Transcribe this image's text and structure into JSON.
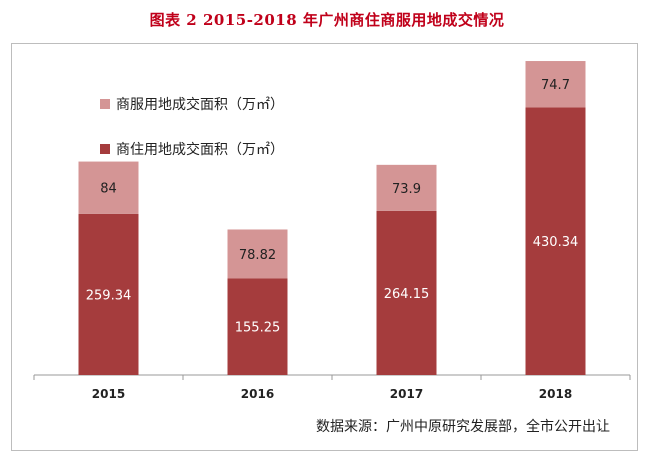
{
  "title": "图表 2    2015-2018 年广州商住商服用地成交情况",
  "source": "数据来源：广州中原研究发展部，全市公开出让",
  "chart_data": {
    "type": "bar",
    "stacked": true,
    "categories": [
      "2015",
      "2016",
      "2017",
      "2018"
    ],
    "series": [
      {
        "name": "商住用地成交面积（万㎡）",
        "values": [
          259.34,
          155.25,
          264.15,
          430.34
        ],
        "value_labels": [
          "259.34",
          "155.25",
          "264.15",
          "430.34"
        ],
        "color": "#a53c3d",
        "label_color": "#ffffff"
      },
      {
        "name": "商服用地成交面积（万㎡）",
        "values": [
          84,
          78.82,
          73.9,
          74.7
        ],
        "value_labels": [
          "84",
          "78.82",
          "73.9",
          "74.7"
        ],
        "color": "#d49595",
        "label_color": "#222222"
      }
    ],
    "legend_order": [
      1,
      0
    ],
    "legend_position": "top-left",
    "ylim": [
      0,
      526
    ],
    "title": "图表 2    2015-2018 年广州商住商服用地成交情况",
    "xlabel": "",
    "ylabel": "",
    "grid": false
  }
}
